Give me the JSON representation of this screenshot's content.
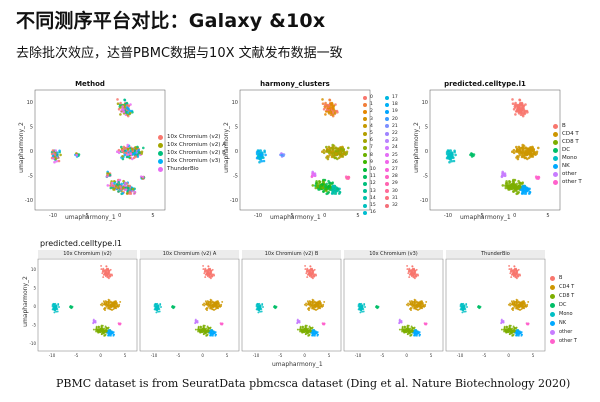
{
  "slide": {
    "title": "不同测序平台对比：Galaxy &10x",
    "subtitle": "去除批次效应，达普PBMC数据与10X 文献发布数据一致",
    "footer": "PBMC dataset is from SeuratData pbmcsca dataset (Ding et al. Nature Biotechnology 2020)"
  },
  "top_panels": [
    {
      "title": "Method",
      "xlabel": "umapharmony_1",
      "ylabel": "umapharmony_2",
      "xticks": [
        "-10",
        "-5",
        "0",
        "5"
      ],
      "yticks": [
        "10",
        "5",
        "0",
        "-5",
        "-10"
      ],
      "legend": [
        {
          "label": "10x Chromium (v2)",
          "color": "#F8766D"
        },
        {
          "label": "10x Chromium (v2) A",
          "color": "#A3A500"
        },
        {
          "label": "10x Chromium (v2) B",
          "color": "#00BF7D"
        },
        {
          "label": "10x Chromium (v3)",
          "color": "#00B0F6"
        },
        {
          "label": "ThunderBio",
          "color": "#E76BF3"
        }
      ]
    },
    {
      "title": "harmony_clusters",
      "xlabel": "umapharmony_1",
      "ylabel": "umapharmony_2",
      "xticks": [
        "-10",
        "-5",
        "0",
        "5"
      ],
      "yticks": [
        "10",
        "5",
        "0",
        "-5",
        "-10"
      ],
      "legend_col1": [
        "0",
        "1",
        "2",
        "3",
        "4",
        "5",
        "6",
        "7",
        "8",
        "9",
        "10",
        "11",
        "12",
        "13",
        "14",
        "15",
        "16"
      ],
      "legend_col2": [
        "17",
        "18",
        "19",
        "20",
        "21",
        "22",
        "23",
        "24",
        "25",
        "26",
        "27",
        "28",
        "29",
        "30",
        "31",
        "32"
      ],
      "colors_col1": [
        "#F8766D",
        "#F17F3A",
        "#E58700",
        "#D39200",
        "#C59900",
        "#B39F00",
        "#A3A500",
        "#8AAB00",
        "#6BB100",
        "#3DB700",
        "#00BA38",
        "#00BD5C",
        "#00BF7D",
        "#00C097",
        "#00C1AA",
        "#00C0BE",
        "#00BDD0"
      ],
      "colors_col2": [
        "#00B6E0",
        "#00B0F6",
        "#00A5FF",
        "#3D9BFF",
        "#7C8EFF",
        "#9F84FF",
        "#B983FF",
        "#CF78FF",
        "#E36EF6",
        "#F066EA",
        "#FA62DB",
        "#FF61C3",
        "#FF64B0",
        "#FF6A98",
        "#FC717F",
        "#F4707A"
      ]
    },
    {
      "title": "predicted.celltype.l1",
      "xlabel": "umapharmony_1",
      "ylabel": "umapharmony_2",
      "xticks": [
        "-10",
        "-5",
        "0",
        "5"
      ],
      "yticks": [
        "10",
        "5",
        "0",
        "-5",
        "-10"
      ],
      "legend": [
        {
          "label": "B",
          "color": "#F8766D"
        },
        {
          "label": "CD4 T",
          "color": "#CD9600"
        },
        {
          "label": "CD8 T",
          "color": "#7CAE00"
        },
        {
          "label": "DC",
          "color": "#00BE67"
        },
        {
          "label": "Mono",
          "color": "#00BFC4"
        },
        {
          "label": "NK",
          "color": "#00A9FF"
        },
        {
          "label": "other",
          "color": "#C77CFF"
        },
        {
          "label": "other T",
          "color": "#FF61CC"
        }
      ]
    }
  ],
  "bottom": {
    "section_label": "predicted.celltype.l1",
    "facets": [
      "10x Chromium (v2)",
      "10x Chromium (v2) A",
      "10x Chromium (v2) B",
      "10x Chromium (v3)",
      "ThunderBio"
    ],
    "xlabel": "umapharmony_1",
    "ylabel": "umapharmony_2",
    "xticks": [
      "-10",
      "-5",
      "0",
      "5"
    ],
    "yticks": [
      "10",
      "5",
      "0",
      "-5",
      "-10"
    ],
    "legend": [
      {
        "label": "B",
        "color": "#F8766D"
      },
      {
        "label": "CD4 T",
        "color": "#CD9600"
      },
      {
        "label": "CD8 T",
        "color": "#7CAE00"
      },
      {
        "label": "DC",
        "color": "#00BE67"
      },
      {
        "label": "Mono",
        "color": "#00BFC4"
      },
      {
        "label": "NK",
        "color": "#00A9FF"
      },
      {
        "label": "other",
        "color": "#C77CFF"
      },
      {
        "label": "other T",
        "color": "#FF61CC"
      }
    ]
  }
}
